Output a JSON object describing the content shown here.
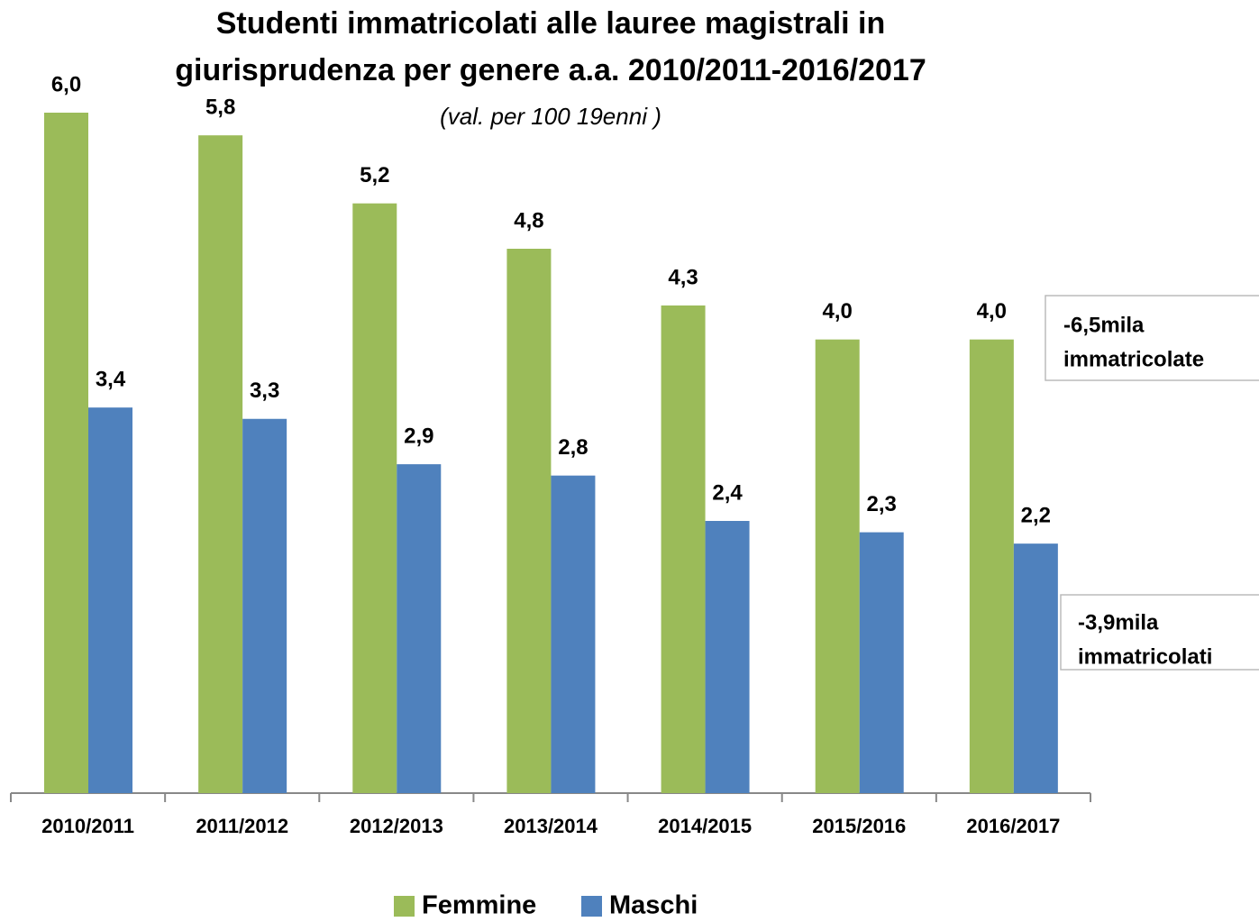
{
  "chart_data": {
    "type": "bar",
    "title": [
      "Studenti immatricolati alle lauree magistrali in",
      "giurisprudenza per genere a.a. 2010/2011-2016/2017"
    ],
    "subtitle": "(val. per 100 19enni )",
    "categories": [
      "2010/2011",
      "2011/2012",
      "2012/2013",
      "2013/2014",
      "2014/2015",
      "2015/2016",
      "2016/2017"
    ],
    "series": [
      {
        "name": "Femmine",
        "color": "#9bbb59",
        "values": [
          6.0,
          5.8,
          5.2,
          4.8,
          4.3,
          4.0,
          4.0
        ],
        "value_labels": [
          "6,0",
          "5,8",
          "5,2",
          "4,8",
          "4,3",
          "4,0",
          "4,0"
        ]
      },
      {
        "name": "Maschi",
        "color": "#4f81bd",
        "values": [
          3.4,
          3.3,
          2.9,
          2.8,
          2.4,
          2.3,
          2.2
        ],
        "value_labels": [
          "3,4",
          "3,3",
          "2,9",
          "2,8",
          "2,4",
          "2,3",
          "2,2"
        ]
      }
    ],
    "annotations": [
      [
        "-6,5mila",
        "immatricolate"
      ],
      [
        "-3,9mila",
        "immatricolati"
      ]
    ]
  }
}
